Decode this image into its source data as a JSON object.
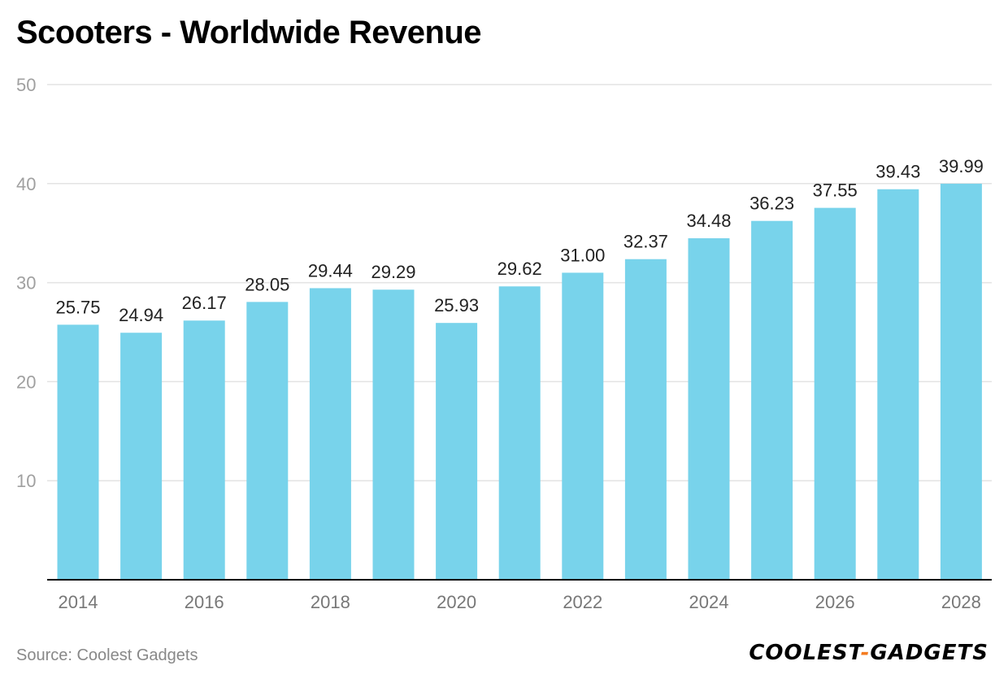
{
  "chart_data": {
    "type": "bar",
    "title": "Scooters - Worldwide Revenue",
    "xlabel": "",
    "ylabel": "",
    "ylim": [
      0,
      50
    ],
    "yticks": [
      10,
      20,
      30,
      40,
      50
    ],
    "grid": true,
    "categories": [
      "2014",
      "2015",
      "2016",
      "2017",
      "2018",
      "2019",
      "2020",
      "2021",
      "2022",
      "2023",
      "2024",
      "2025",
      "2026",
      "2027",
      "2028"
    ],
    "xtick_labels": [
      "2014",
      "",
      "2016",
      "",
      "2018",
      "",
      "2020",
      "",
      "2022",
      "",
      "2024",
      "",
      "2026",
      "",
      "2028"
    ],
    "values": [
      25.75,
      24.94,
      26.17,
      28.05,
      29.44,
      29.29,
      25.93,
      29.62,
      31.0,
      32.37,
      34.48,
      36.23,
      37.55,
      39.43,
      39.99
    ],
    "value_labels": [
      "25.75",
      "24.94",
      "26.17",
      "28.05",
      "29.44",
      "29.29",
      "25.93",
      "29.62",
      "31.00",
      "32.37",
      "34.48",
      "36.23",
      "37.55",
      "39.43",
      "39.99"
    ],
    "bar_color": "#78d3eb",
    "grid_color": "#e3e3e3",
    "axis_color": "#000000",
    "tick_color": "#a0a0a0",
    "label_color": "#222222"
  },
  "footer": {
    "source": "Source: Coolest Gadgets",
    "brand_left": "COOLEST",
    "brand_dash": "-",
    "brand_right": "GADGETS"
  }
}
